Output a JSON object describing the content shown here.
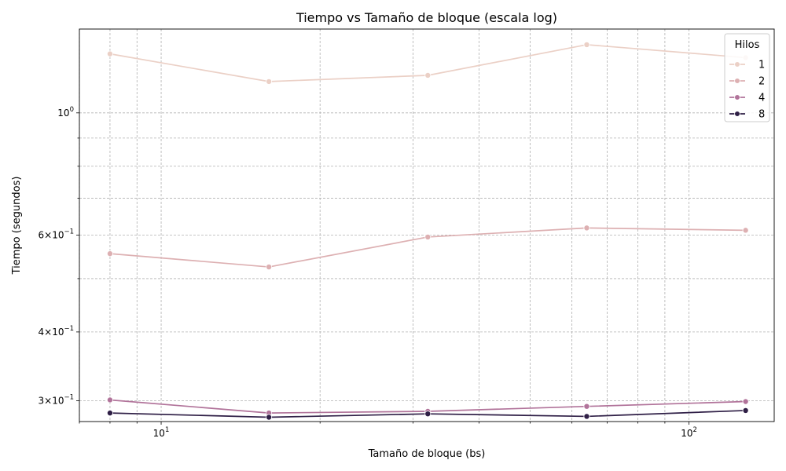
{
  "chart_data": {
    "type": "line",
    "title": "Tiempo vs Tamaño de bloque (escala log)",
    "xlabel": "Tamaño de bloque (bs)",
    "ylabel": "Tiempo (segundos)",
    "x_scale": "log",
    "y_scale": "log",
    "xlim": [
      7.0,
      145.0
    ],
    "ylim": [
      0.275,
      1.42
    ],
    "x_major_ticks": [
      {
        "value": 10,
        "base": "10",
        "exp": "1"
      },
      {
        "value": 100,
        "base": "10",
        "exp": "2"
      }
    ],
    "y_labeled_ticks": [
      {
        "value": 1.0,
        "mant": "",
        "base": "10",
        "exp": "0"
      },
      {
        "value": 0.6,
        "mant": "6×",
        "base": "10",
        "exp": "−1"
      },
      {
        "value": 0.4,
        "mant": "4×",
        "base": "10",
        "exp": "−1"
      },
      {
        "value": 0.3,
        "mant": "3×",
        "base": "10",
        "exp": "−1"
      }
    ],
    "y_unlabeled_ticks": [
      0.9,
      0.8,
      0.7,
      0.5
    ],
    "grid": true,
    "legend": {
      "title": "Hilos",
      "placement": "top-right"
    },
    "x": [
      8,
      16,
      32,
      64,
      128
    ],
    "series": [
      {
        "name": "1",
        "color": "#ebd0c6",
        "values": [
          1.28,
          1.14,
          1.17,
          1.33,
          1.26
        ]
      },
      {
        "name": "2",
        "color": "#ddb0b2",
        "values": [
          0.555,
          0.525,
          0.595,
          0.618,
          0.612
        ]
      },
      {
        "name": "4",
        "color": "#b1739a",
        "values": [
          0.301,
          0.285,
          0.287,
          0.293,
          0.299
        ]
      },
      {
        "name": "8",
        "color": "#2f1f46",
        "values": [
          0.285,
          0.28,
          0.284,
          0.281,
          0.288
        ]
      }
    ]
  }
}
